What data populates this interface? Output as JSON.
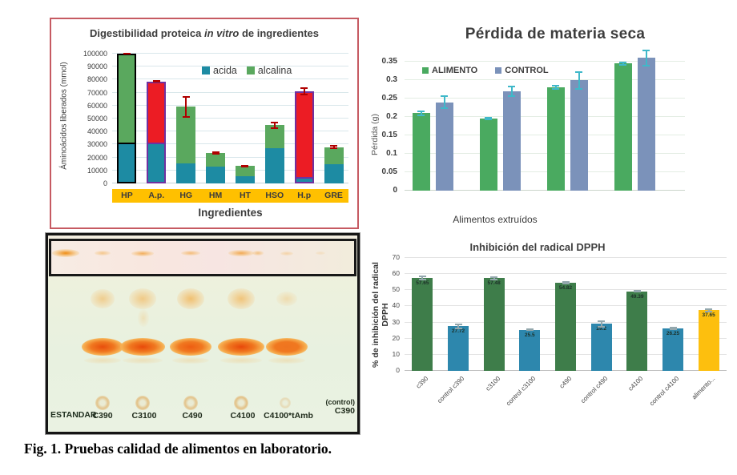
{
  "caption": "Fig. 1. Pruebas calidad de alimentos en laboratorio.",
  "digestibilidad": {
    "title_pre": "Digestibilidad proteica ",
    "title_italic": "in vitro",
    "title_post": " de ingredientes",
    "ylabel": "Áminoácidos liberados (mmol)",
    "xlabel": "Ingredientes"
  },
  "perdida": {
    "title": "Pérdida de materia seca",
    "ylabel": "Pérdida (g)",
    "footer": "Alimentos extruídos"
  },
  "dpph": {
    "title": "Inhibición del radical DPPH",
    "ylabel_line1": "% de inhibición del radical",
    "ylabel_line2": "DPPH"
  },
  "tlc": {
    "estandar_label": "ESTANDAR",
    "lane_labels": [
      "C390",
      "C3100",
      "C490",
      "C4100",
      "C4100*tAmb"
    ],
    "control_label_top": "(control)",
    "control_label_bottom": "C390"
  },
  "chart_data": [
    {
      "id": "digestibilidad",
      "type": "bar",
      "subtype": "stacked",
      "title": "Digestibilidad proteica in vitro de ingredientes",
      "xlabel": "Ingredientes",
      "ylabel": "Áminoácidos liberados (mmol)",
      "ylim": [
        0,
        100000
      ],
      "ytick_step": 10000,
      "grid": true,
      "legend_position": "top-inside",
      "categories": [
        "HP",
        "A.p.",
        "HG",
        "HM",
        "HT",
        "HSO",
        "H.p",
        "GRE"
      ],
      "series": [
        {
          "name": "acida",
          "color": "#1d8ba3",
          "values": [
            31000,
            31000,
            15500,
            13000,
            5500,
            27000,
            3500,
            15000
          ]
        },
        {
          "name": "alcalina",
          "color": "#5aa85e",
          "values": [
            69000,
            47500,
            43500,
            10500,
            8000,
            18000,
            67500,
            13000
          ],
          "colors": [
            "#5aa85e",
            "#ec1c24",
            "#5aa85e",
            "#5aa85e",
            "#5aa85e",
            "#5aa85e",
            "#ec1c24",
            "#5aa85e"
          ]
        }
      ],
      "totals": [
        100000,
        78500,
        59000,
        23500,
        13500,
        45000,
        71000,
        28000
      ],
      "outlines": [
        "#000000",
        "#7030a0",
        null,
        null,
        null,
        null,
        "#7030a0",
        null
      ],
      "errors": [
        600,
        900,
        8500,
        1500,
        900,
        2800,
        3200,
        1400
      ],
      "error_color": "#b00000",
      "legend": [
        {
          "label": "acida",
          "color": "#1d8ba3"
        },
        {
          "label": "alcalina",
          "color": "#5aa85e"
        }
      ],
      "category_band_color": "#ffc000"
    },
    {
      "id": "perdida",
      "type": "bar",
      "subtype": "grouped",
      "title": "Pérdida de materia seca",
      "ylabel": "Pérdida (g)",
      "footer": "Alimentos extruídos",
      "ylim": [
        0,
        0.35
      ],
      "ytick_step": 0.05,
      "grid": true,
      "legend_position": "top-left-inside",
      "categories": [
        "",
        "",
        "",
        ""
      ],
      "series": [
        {
          "name": "ALIMENTO",
          "color": "#4aaa60",
          "values": [
            0.21,
            0.195,
            0.28,
            0.345
          ],
          "errors": [
            0.008,
            0.004,
            0.006,
            0.005
          ]
        },
        {
          "name": "CONTROL",
          "color": "#7b92ba",
          "values": [
            0.24,
            0.27,
            0.3,
            0.36
          ],
          "errors": [
            0.018,
            0.015,
            0.025,
            0.022
          ]
        }
      ],
      "error_color": "#3fb8c9"
    },
    {
      "id": "dpph",
      "type": "bar",
      "subtype": "single",
      "title": "Inhibición del radical DPPH",
      "ylabel": "% de inhibición del radical DPPH",
      "ylim": [
        0,
        70
      ],
      "ytick_step": 10,
      "grid": true,
      "categories": [
        "c390",
        "control c390",
        "c3100",
        "control c3100",
        "c490",
        "control c490",
        "c4100",
        "control c4100",
        "alimento..."
      ],
      "values": [
        57.65,
        27.72,
        57.48,
        25.5,
        54.82,
        29.2,
        49.39,
        26.25,
        37.65
      ],
      "value_labels": [
        "57.65",
        "27.72",
        "57.48",
        "25.5",
        "54.82",
        "29.2",
        "49.39",
        "26.25",
        "37.65"
      ],
      "colors": [
        "#3e7d4a",
        "#2d87ad",
        "#3e7d4a",
        "#2d87ad",
        "#3e7d4a",
        "#2d87ad",
        "#3e7d4a",
        "#2d87ad",
        "#fdbf0e"
      ],
      "errors": [
        1.5,
        1.8,
        1.2,
        0.9,
        1.0,
        2.3,
        0.9,
        1.0,
        1.2
      ],
      "error_color": "#93a7ad"
    }
  ]
}
